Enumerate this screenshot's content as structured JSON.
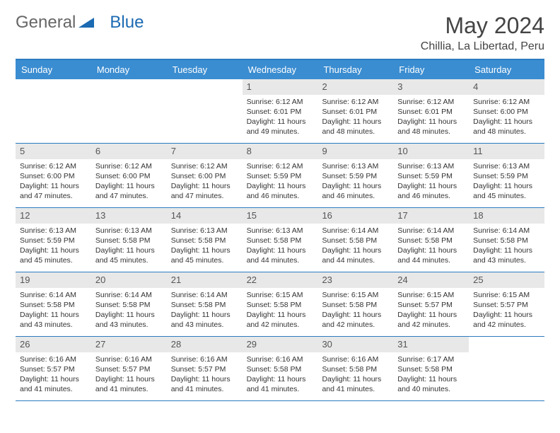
{
  "brand": {
    "part1": "General",
    "part2": "Blue"
  },
  "title": "May 2024",
  "location": "Chillia, La Libertad, Peru",
  "colors": {
    "header_bg": "#3b8dd1",
    "header_border": "#2a7cc0",
    "daynum_bg": "#e8e8e8",
    "text": "#333333",
    "brand_blue": "#1b6ab2"
  },
  "day_headers": [
    "Sunday",
    "Monday",
    "Tuesday",
    "Wednesday",
    "Thursday",
    "Friday",
    "Saturday"
  ],
  "weeks": [
    [
      {
        "num": "",
        "lines": []
      },
      {
        "num": "",
        "lines": []
      },
      {
        "num": "",
        "lines": []
      },
      {
        "num": "1",
        "lines": [
          "Sunrise: 6:12 AM",
          "Sunset: 6:01 PM",
          "Daylight: 11 hours and 49 minutes."
        ]
      },
      {
        "num": "2",
        "lines": [
          "Sunrise: 6:12 AM",
          "Sunset: 6:01 PM",
          "Daylight: 11 hours and 48 minutes."
        ]
      },
      {
        "num": "3",
        "lines": [
          "Sunrise: 6:12 AM",
          "Sunset: 6:01 PM",
          "Daylight: 11 hours and 48 minutes."
        ]
      },
      {
        "num": "4",
        "lines": [
          "Sunrise: 6:12 AM",
          "Sunset: 6:00 PM",
          "Daylight: 11 hours and 48 minutes."
        ]
      }
    ],
    [
      {
        "num": "5",
        "lines": [
          "Sunrise: 6:12 AM",
          "Sunset: 6:00 PM",
          "Daylight: 11 hours and 47 minutes."
        ]
      },
      {
        "num": "6",
        "lines": [
          "Sunrise: 6:12 AM",
          "Sunset: 6:00 PM",
          "Daylight: 11 hours and 47 minutes."
        ]
      },
      {
        "num": "7",
        "lines": [
          "Sunrise: 6:12 AM",
          "Sunset: 6:00 PM",
          "Daylight: 11 hours and 47 minutes."
        ]
      },
      {
        "num": "8",
        "lines": [
          "Sunrise: 6:12 AM",
          "Sunset: 5:59 PM",
          "Daylight: 11 hours and 46 minutes."
        ]
      },
      {
        "num": "9",
        "lines": [
          "Sunrise: 6:13 AM",
          "Sunset: 5:59 PM",
          "Daylight: 11 hours and 46 minutes."
        ]
      },
      {
        "num": "10",
        "lines": [
          "Sunrise: 6:13 AM",
          "Sunset: 5:59 PM",
          "Daylight: 11 hours and 46 minutes."
        ]
      },
      {
        "num": "11",
        "lines": [
          "Sunrise: 6:13 AM",
          "Sunset: 5:59 PM",
          "Daylight: 11 hours and 45 minutes."
        ]
      }
    ],
    [
      {
        "num": "12",
        "lines": [
          "Sunrise: 6:13 AM",
          "Sunset: 5:59 PM",
          "Daylight: 11 hours and 45 minutes."
        ]
      },
      {
        "num": "13",
        "lines": [
          "Sunrise: 6:13 AM",
          "Sunset: 5:58 PM",
          "Daylight: 11 hours and 45 minutes."
        ]
      },
      {
        "num": "14",
        "lines": [
          "Sunrise: 6:13 AM",
          "Sunset: 5:58 PM",
          "Daylight: 11 hours and 45 minutes."
        ]
      },
      {
        "num": "15",
        "lines": [
          "Sunrise: 6:13 AM",
          "Sunset: 5:58 PM",
          "Daylight: 11 hours and 44 minutes."
        ]
      },
      {
        "num": "16",
        "lines": [
          "Sunrise: 6:14 AM",
          "Sunset: 5:58 PM",
          "Daylight: 11 hours and 44 minutes."
        ]
      },
      {
        "num": "17",
        "lines": [
          "Sunrise: 6:14 AM",
          "Sunset: 5:58 PM",
          "Daylight: 11 hours and 44 minutes."
        ]
      },
      {
        "num": "18",
        "lines": [
          "Sunrise: 6:14 AM",
          "Sunset: 5:58 PM",
          "Daylight: 11 hours and 43 minutes."
        ]
      }
    ],
    [
      {
        "num": "19",
        "lines": [
          "Sunrise: 6:14 AM",
          "Sunset: 5:58 PM",
          "Daylight: 11 hours and 43 minutes."
        ]
      },
      {
        "num": "20",
        "lines": [
          "Sunrise: 6:14 AM",
          "Sunset: 5:58 PM",
          "Daylight: 11 hours and 43 minutes."
        ]
      },
      {
        "num": "21",
        "lines": [
          "Sunrise: 6:14 AM",
          "Sunset: 5:58 PM",
          "Daylight: 11 hours and 43 minutes."
        ]
      },
      {
        "num": "22",
        "lines": [
          "Sunrise: 6:15 AM",
          "Sunset: 5:58 PM",
          "Daylight: 11 hours and 42 minutes."
        ]
      },
      {
        "num": "23",
        "lines": [
          "Sunrise: 6:15 AM",
          "Sunset: 5:58 PM",
          "Daylight: 11 hours and 42 minutes."
        ]
      },
      {
        "num": "24",
        "lines": [
          "Sunrise: 6:15 AM",
          "Sunset: 5:57 PM",
          "Daylight: 11 hours and 42 minutes."
        ]
      },
      {
        "num": "25",
        "lines": [
          "Sunrise: 6:15 AM",
          "Sunset: 5:57 PM",
          "Daylight: 11 hours and 42 minutes."
        ]
      }
    ],
    [
      {
        "num": "26",
        "lines": [
          "Sunrise: 6:16 AM",
          "Sunset: 5:57 PM",
          "Daylight: 11 hours and 41 minutes."
        ]
      },
      {
        "num": "27",
        "lines": [
          "Sunrise: 6:16 AM",
          "Sunset: 5:57 PM",
          "Daylight: 11 hours and 41 minutes."
        ]
      },
      {
        "num": "28",
        "lines": [
          "Sunrise: 6:16 AM",
          "Sunset: 5:57 PM",
          "Daylight: 11 hours and 41 minutes."
        ]
      },
      {
        "num": "29",
        "lines": [
          "Sunrise: 6:16 AM",
          "Sunset: 5:58 PM",
          "Daylight: 11 hours and 41 minutes."
        ]
      },
      {
        "num": "30",
        "lines": [
          "Sunrise: 6:16 AM",
          "Sunset: 5:58 PM",
          "Daylight: 11 hours and 41 minutes."
        ]
      },
      {
        "num": "31",
        "lines": [
          "Sunrise: 6:17 AM",
          "Sunset: 5:58 PM",
          "Daylight: 11 hours and 40 minutes."
        ]
      },
      {
        "num": "",
        "lines": []
      }
    ]
  ]
}
